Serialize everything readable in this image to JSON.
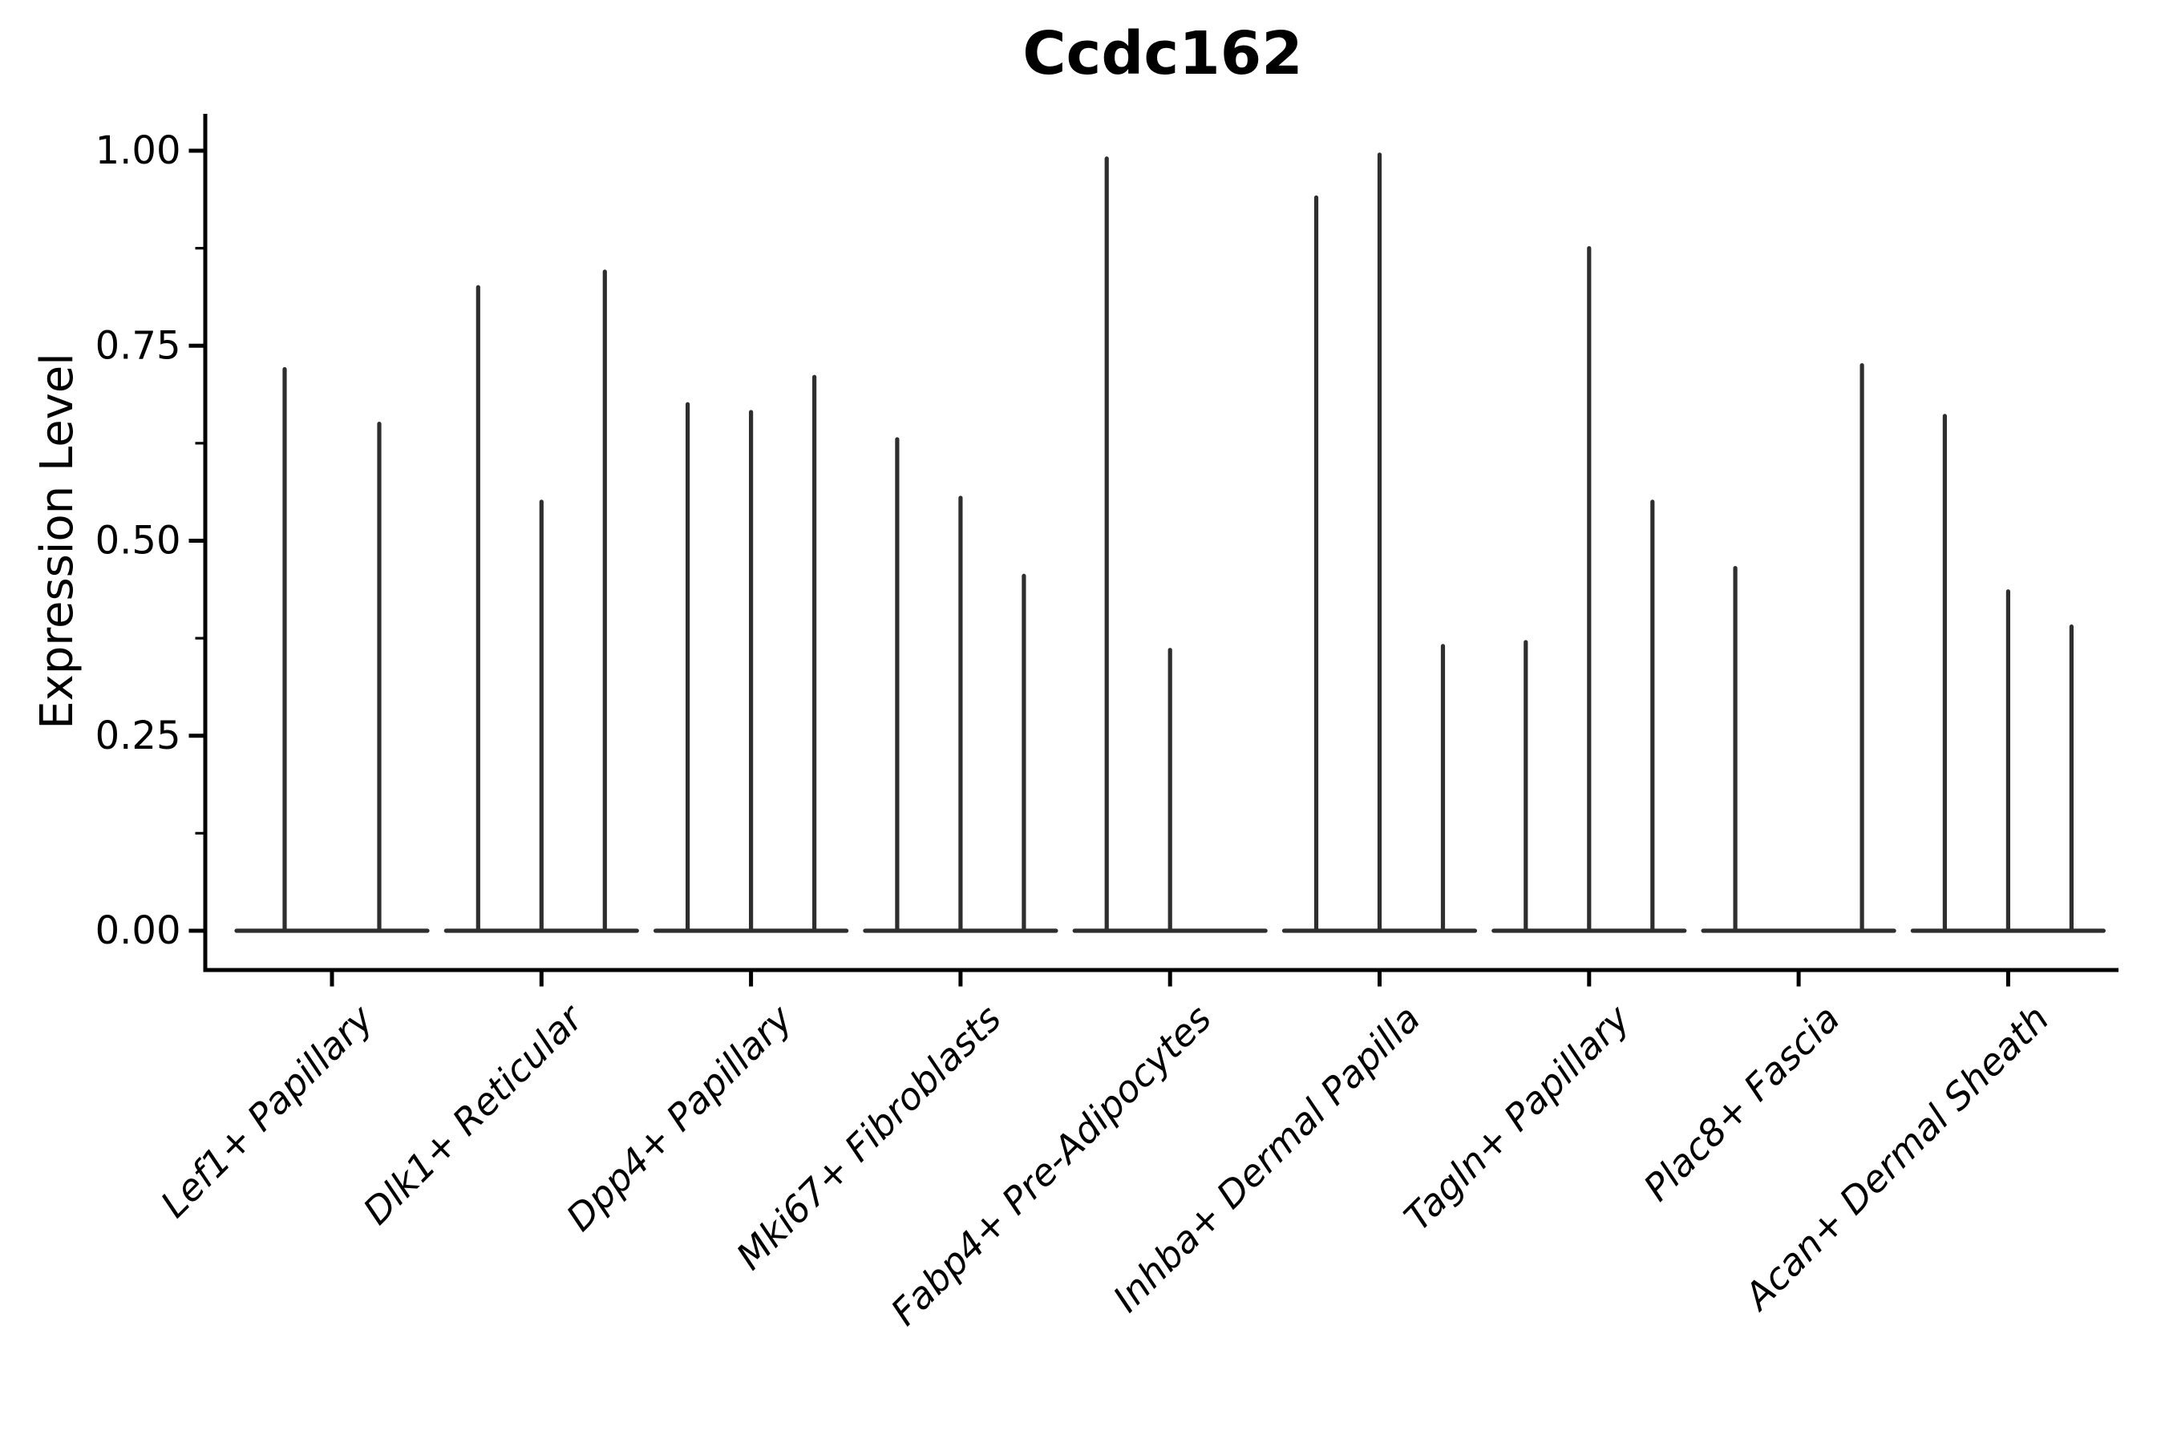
{
  "figure": {
    "background": "#ffffff",
    "ink_color": "#000000",
    "violin_color": "#2e2e2e"
  },
  "chart_data": {
    "type": "violin",
    "title": "Ccdc162",
    "xlabel": "",
    "ylabel": "Expression Level",
    "ylim": [
      0,
      1.05
    ],
    "grid": false,
    "legend": null,
    "y_major_ticks": [
      0.0,
      0.25,
      0.5,
      0.75,
      1.0
    ],
    "y_major_tick_labels": [
      "0.00",
      "0.25",
      "0.50",
      "0.75",
      "1.00"
    ],
    "y_minor_ticks": [
      0.125,
      0.375,
      0.625,
      0.875
    ],
    "style_note": "collapsed violins: flat base line at 0 per category, thin vertical spike per violin reaching its max expression; null = violin with no expressing cells (flat only)",
    "categories": [
      {
        "label": "Lef1+ Papillary",
        "violin_spike_tops": [
          0.72,
          0.65
        ]
      },
      {
        "label": "Dlk1+ Reticular",
        "violin_spike_tops": [
          0.825,
          0.55,
          0.845
        ]
      },
      {
        "label": "Dpp4+ Papillary",
        "violin_spike_tops": [
          0.675,
          0.665,
          0.71
        ]
      },
      {
        "label": "Mki67+ Fibroblasts",
        "violin_spike_tops": [
          0.63,
          0.555,
          0.455
        ]
      },
      {
        "label": "Fabp4+ Pre-Adipocytes",
        "violin_spike_tops": [
          0.99,
          0.36,
          null
        ]
      },
      {
        "label": "Inhba+ Dermal Papilla",
        "violin_spike_tops": [
          0.94,
          0.995,
          0.365
        ]
      },
      {
        "label": "Tagln+ Papillary",
        "violin_spike_tops": [
          0.37,
          0.875,
          0.55
        ]
      },
      {
        "label": "Plac8+ Fascia",
        "violin_spike_tops": [
          0.465,
          null,
          0.725
        ]
      },
      {
        "label": "Acan+ Dermal Sheath",
        "violin_spike_tops": [
          0.66,
          0.435,
          0.39
        ]
      }
    ]
  }
}
